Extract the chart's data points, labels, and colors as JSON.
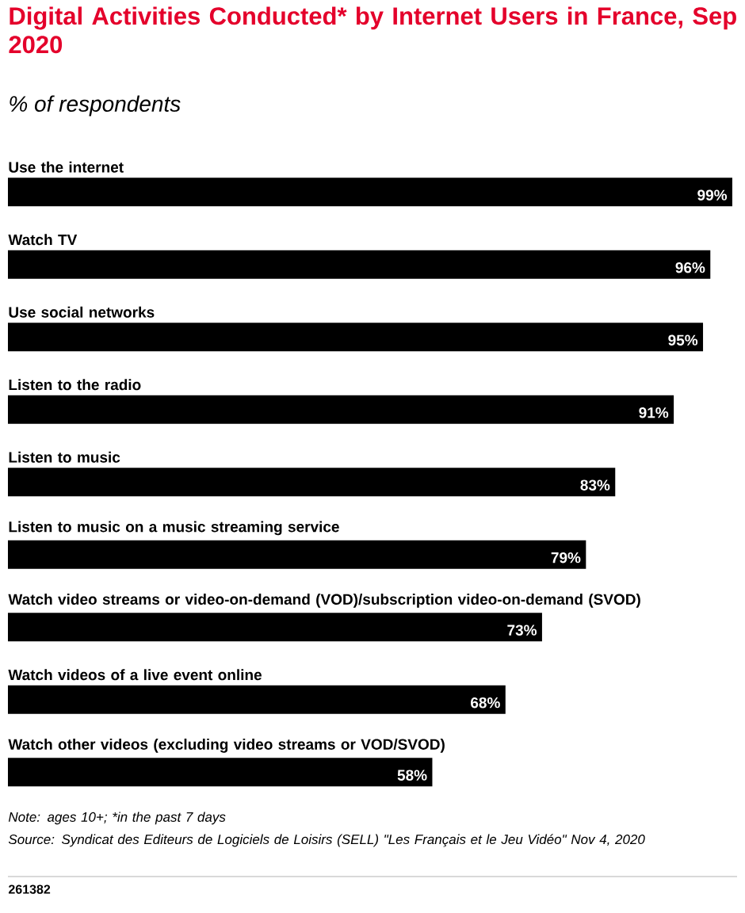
{
  "chart_data": {
    "type": "bar",
    "orientation": "horizontal",
    "title": "Digital Activities Conducted* by Internet Users in France, Sep 2020",
    "subtitle": "% of respondents",
    "categories": [
      "Use the internet",
      "Watch TV",
      "Use social networks",
      "Listen to the radio",
      "Listen to music",
      "Listen to music on a music streaming service",
      "Watch video streams or video-on-demand (VOD)/subscription video-on-demand (SVOD)",
      "Watch videos of a live event online",
      "Watch other videos (excluding video streams or VOD/SVOD)"
    ],
    "values": [
      99,
      96,
      95,
      91,
      83,
      79,
      73,
      68,
      58
    ],
    "value_labels": [
      "99%",
      "96%",
      "95%",
      "91%",
      "83%",
      "79%",
      "73%",
      "68%",
      "58%"
    ],
    "color": "#000000",
    "annotations": [
      "Note: ages 10+; *in the past 7 days",
      "Source: Syndicat des Editeurs de Logiciels de Loisirs (SELL) \"Les Français et le Jeu Vidéo\" Nov 4, 2020",
      "261382"
    ]
  }
}
